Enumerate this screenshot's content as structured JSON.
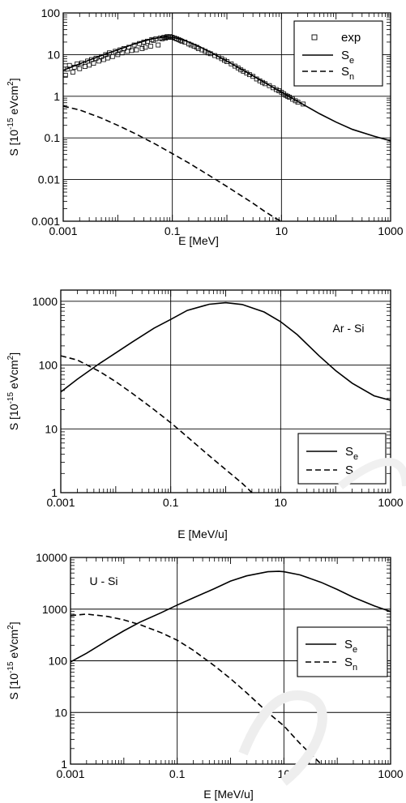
{
  "chart_data": [
    {
      "type": "line",
      "xlabel": "E [MeV]",
      "ylabel": "S [10^-15 eVcm^2]",
      "xscale": "log",
      "yscale": "log",
      "xlim": [
        0.001,
        1000
      ],
      "ylim": [
        0.001,
        100
      ],
      "x_ticks": [
        "0.001",
        "0.1",
        "10",
        "1000"
      ],
      "y_ticks": [
        "0.001",
        "0.01",
        "0.1",
        "1",
        "10",
        "100"
      ],
      "grid": true,
      "legend_position": "top-right",
      "annotation": "",
      "series": [
        {
          "name": "exp",
          "style": "open-square-markers",
          "points": [
            [
              0.0011,
              3.2
            ],
            [
              0.0012,
              4.5
            ],
            [
              0.0013,
              5.5
            ],
            [
              0.0015,
              3.8
            ],
            [
              0.0016,
              5.0
            ],
            [
              0.0018,
              6.0
            ],
            [
              0.002,
              4.6
            ],
            [
              0.0022,
              6.3
            ],
            [
              0.0025,
              5.2
            ],
            [
              0.0028,
              7.0
            ],
            [
              0.003,
              5.6
            ],
            [
              0.0033,
              7.6
            ],
            [
              0.0036,
              6.2
            ],
            [
              0.004,
              8.2
            ],
            [
              0.0045,
              7.0
            ],
            [
              0.005,
              9.0
            ],
            [
              0.0055,
              7.6
            ],
            [
              0.006,
              10.0
            ],
            [
              0.0065,
              8.3
            ],
            [
              0.007,
              11.0
            ],
            [
              0.008,
              9.0
            ],
            [
              0.009,
              12.0
            ],
            [
              0.01,
              10.0
            ],
            [
              0.011,
              13.0
            ],
            [
              0.012,
              11.0
            ],
            [
              0.013,
              14.0
            ],
            [
              0.015,
              12.0
            ],
            [
              0.016,
              15.0
            ],
            [
              0.018,
              12.5
            ],
            [
              0.02,
              17.0
            ],
            [
              0.022,
              13.0
            ],
            [
              0.025,
              18.5
            ],
            [
              0.028,
              14.0
            ],
            [
              0.03,
              20.0
            ],
            [
              0.032,
              15.0
            ],
            [
              0.035,
              21.0
            ],
            [
              0.04,
              16.0
            ],
            [
              0.042,
              23.0
            ],
            [
              0.045,
              22.0
            ],
            [
              0.05,
              24.0
            ],
            [
              0.055,
              17.0
            ],
            [
              0.06,
              25.0
            ],
            [
              0.065,
              24.0
            ],
            [
              0.07,
              26.0
            ],
            [
              0.075,
              25.0
            ],
            [
              0.08,
              27.0
            ],
            [
              0.085,
              26.0
            ],
            [
              0.09,
              27.0
            ],
            [
              0.095,
              26.0
            ],
            [
              0.1,
              26.0
            ],
            [
              0.11,
              25.0
            ],
            [
              0.12,
              24.0
            ],
            [
              0.13,
              23.0
            ],
            [
              0.14,
              22.0
            ],
            [
              0.15,
              21.0
            ],
            [
              0.17,
              20.0
            ],
            [
              0.2,
              18.0
            ],
            [
              0.22,
              17.0
            ],
            [
              0.25,
              16.0
            ],
            [
              0.28,
              15.0
            ],
            [
              0.3,
              14.0
            ],
            [
              0.35,
              13.0
            ],
            [
              0.4,
              12.0
            ],
            [
              0.45,
              11.0
            ],
            [
              0.5,
              10.5
            ],
            [
              0.6,
              9.5
            ],
            [
              0.7,
              8.8
            ],
            [
              0.8,
              8.0
            ],
            [
              0.9,
              7.3
            ],
            [
              1.0,
              6.8
            ],
            [
              1.2,
              6.0
            ],
            [
              1.4,
              5.3
            ],
            [
              1.6,
              4.8
            ],
            [
              1.8,
              4.3
            ],
            [
              2.0,
              4.0
            ],
            [
              2.3,
              3.6
            ],
            [
              2.6,
              3.3
            ],
            [
              3.0,
              3.0
            ],
            [
              3.5,
              2.6
            ],
            [
              4.0,
              2.35
            ],
            [
              4.5,
              2.15
            ],
            [
              5.0,
              2.0
            ],
            [
              6.0,
              1.8
            ],
            [
              7.0,
              1.6
            ],
            [
              8.0,
              1.45
            ],
            [
              9.0,
              1.35
            ],
            [
              10.0,
              1.25
            ],
            [
              11.0,
              1.15
            ],
            [
              12.0,
              1.05
            ],
            [
              13.0,
              1.0
            ],
            [
              14.0,
              0.95
            ],
            [
              16.0,
              0.85
            ],
            [
              18.0,
              0.78
            ],
            [
              20.0,
              0.72
            ],
            [
              25.0,
              0.65
            ]
          ]
        },
        {
          "name": "S_e",
          "style": "solid",
          "points": [
            [
              0.001,
              4.2
            ],
            [
              0.002,
              6.0
            ],
            [
              0.005,
              9.5
            ],
            [
              0.01,
              13.0
            ],
            [
              0.02,
              18.0
            ],
            [
              0.04,
              23.5
            ],
            [
              0.07,
              26.5
            ],
            [
              0.1,
              26.0
            ],
            [
              0.15,
              23.0
            ],
            [
              0.2,
              20.0
            ],
            [
              0.3,
              16.0
            ],
            [
              0.5,
              11.5
            ],
            [
              0.7,
              9.0
            ],
            [
              1.0,
              7.0
            ],
            [
              2.0,
              4.2
            ],
            [
              3.0,
              3.1
            ],
            [
              5.0,
              2.1
            ],
            [
              10.0,
              1.25
            ],
            [
              20.0,
              0.75
            ],
            [
              50.0,
              0.38
            ],
            [
              100.0,
              0.24
            ],
            [
              200.0,
              0.16
            ],
            [
              500.0,
              0.11
            ],
            [
              1000.0,
              0.085
            ]
          ]
        },
        {
          "name": "S_n",
          "style": "dashed",
          "points": [
            [
              0.001,
              0.58
            ],
            [
              0.002,
              0.47
            ],
            [
              0.005,
              0.3
            ],
            [
              0.01,
              0.2
            ],
            [
              0.02,
              0.13
            ],
            [
              0.05,
              0.07
            ],
            [
              0.1,
              0.042
            ],
            [
              0.2,
              0.025
            ],
            [
              0.5,
              0.012
            ],
            [
              1.0,
              0.0068
            ],
            [
              2.0,
              0.0038
            ],
            [
              3.0,
              0.0027
            ],
            [
              5.0,
              0.0017
            ],
            [
              8.0,
              0.00115
            ],
            [
              10.0,
              0.001
            ]
          ]
        }
      ]
    },
    {
      "type": "line",
      "xlabel": "E [MeV/u]",
      "ylabel": "S [10^-15 eVcm^2]",
      "xscale": "log",
      "yscale": "log",
      "xlim": [
        0.001,
        1000
      ],
      "ylim": [
        1,
        1500
      ],
      "x_ticks": [
        "0.001",
        "0.1",
        "10",
        "1000"
      ],
      "y_ticks": [
        "1",
        "10",
        "100",
        "1000"
      ],
      "grid": true,
      "legend_position": "bottom-right",
      "annotation": "Ar - Si",
      "series": [
        {
          "name": "S_e",
          "style": "solid",
          "points": [
            [
              0.001,
              38
            ],
            [
              0.002,
              60
            ],
            [
              0.005,
              105
            ],
            [
              0.01,
              155
            ],
            [
              0.02,
              230
            ],
            [
              0.05,
              380
            ],
            [
              0.1,
              520
            ],
            [
              0.2,
              720
            ],
            [
              0.5,
              900
            ],
            [
              1.0,
              950
            ],
            [
              2.0,
              890
            ],
            [
              5.0,
              680
            ],
            [
              10.0,
              480
            ],
            [
              20.0,
              300
            ],
            [
              50.0,
              140
            ],
            [
              100.0,
              82
            ],
            [
              200.0,
              52
            ],
            [
              500.0,
              33
            ],
            [
              1000.0,
              28
            ]
          ]
        },
        {
          "name": "S_n",
          "style": "dashed",
          "points": [
            [
              0.001,
              140
            ],
            [
              0.002,
              120
            ],
            [
              0.005,
              80
            ],
            [
              0.01,
              55
            ],
            [
              0.02,
              36
            ],
            [
              0.05,
              20
            ],
            [
              0.1,
              12.5
            ],
            [
              0.2,
              7.5
            ],
            [
              0.5,
              3.8
            ],
            [
              1.0,
              2.3
            ],
            [
              2.0,
              1.4
            ],
            [
              3.0,
              1.0
            ]
          ]
        }
      ]
    },
    {
      "type": "line",
      "xlabel": "E [MeV/u]",
      "ylabel": "S [10^-15 eVcm^2]",
      "xscale": "log",
      "yscale": "log",
      "xlim": [
        0.001,
        1000
      ],
      "ylim": [
        1,
        10000
      ],
      "x_ticks": [
        "0.001",
        "0.1",
        "10",
        "1000"
      ],
      "y_ticks": [
        "1",
        "10",
        "100",
        "1000",
        "10000"
      ],
      "grid": true,
      "legend_position": "middle-right",
      "annotation": "U - Si",
      "series": [
        {
          "name": "S_e",
          "style": "solid",
          "points": [
            [
              0.001,
              95
            ],
            [
              0.002,
              140
            ],
            [
              0.005,
              250
            ],
            [
              0.01,
              380
            ],
            [
              0.02,
              560
            ],
            [
              0.05,
              850
            ],
            [
              0.1,
              1200
            ],
            [
              0.2,
              1650
            ],
            [
              0.5,
              2500
            ],
            [
              1.0,
              3500
            ],
            [
              2.0,
              4400
            ],
            [
              5.0,
              5300
            ],
            [
              8.0,
              5400
            ],
            [
              10.0,
              5300
            ],
            [
              20.0,
              4600
            ],
            [
              50.0,
              3300
            ],
            [
              100.0,
              2400
            ],
            [
              200.0,
              1700
            ],
            [
              500.0,
              1150
            ],
            [
              1000.0,
              900
            ]
          ]
        },
        {
          "name": "S_n",
          "style": "dashed",
          "points": [
            [
              0.001,
              750
            ],
            [
              0.002,
              800
            ],
            [
              0.005,
              720
            ],
            [
              0.01,
              620
            ],
            [
              0.02,
              500
            ],
            [
              0.05,
              350
            ],
            [
              0.1,
              250
            ],
            [
              0.2,
              160
            ],
            [
              0.5,
              80
            ],
            [
              1.0,
              45
            ],
            [
              2.0,
              24
            ],
            [
              5.0,
              10
            ],
            [
              10.0,
              5.5
            ],
            [
              20.0,
              2.5
            ],
            [
              50.0,
              1.0
            ]
          ]
        }
      ]
    }
  ]
}
